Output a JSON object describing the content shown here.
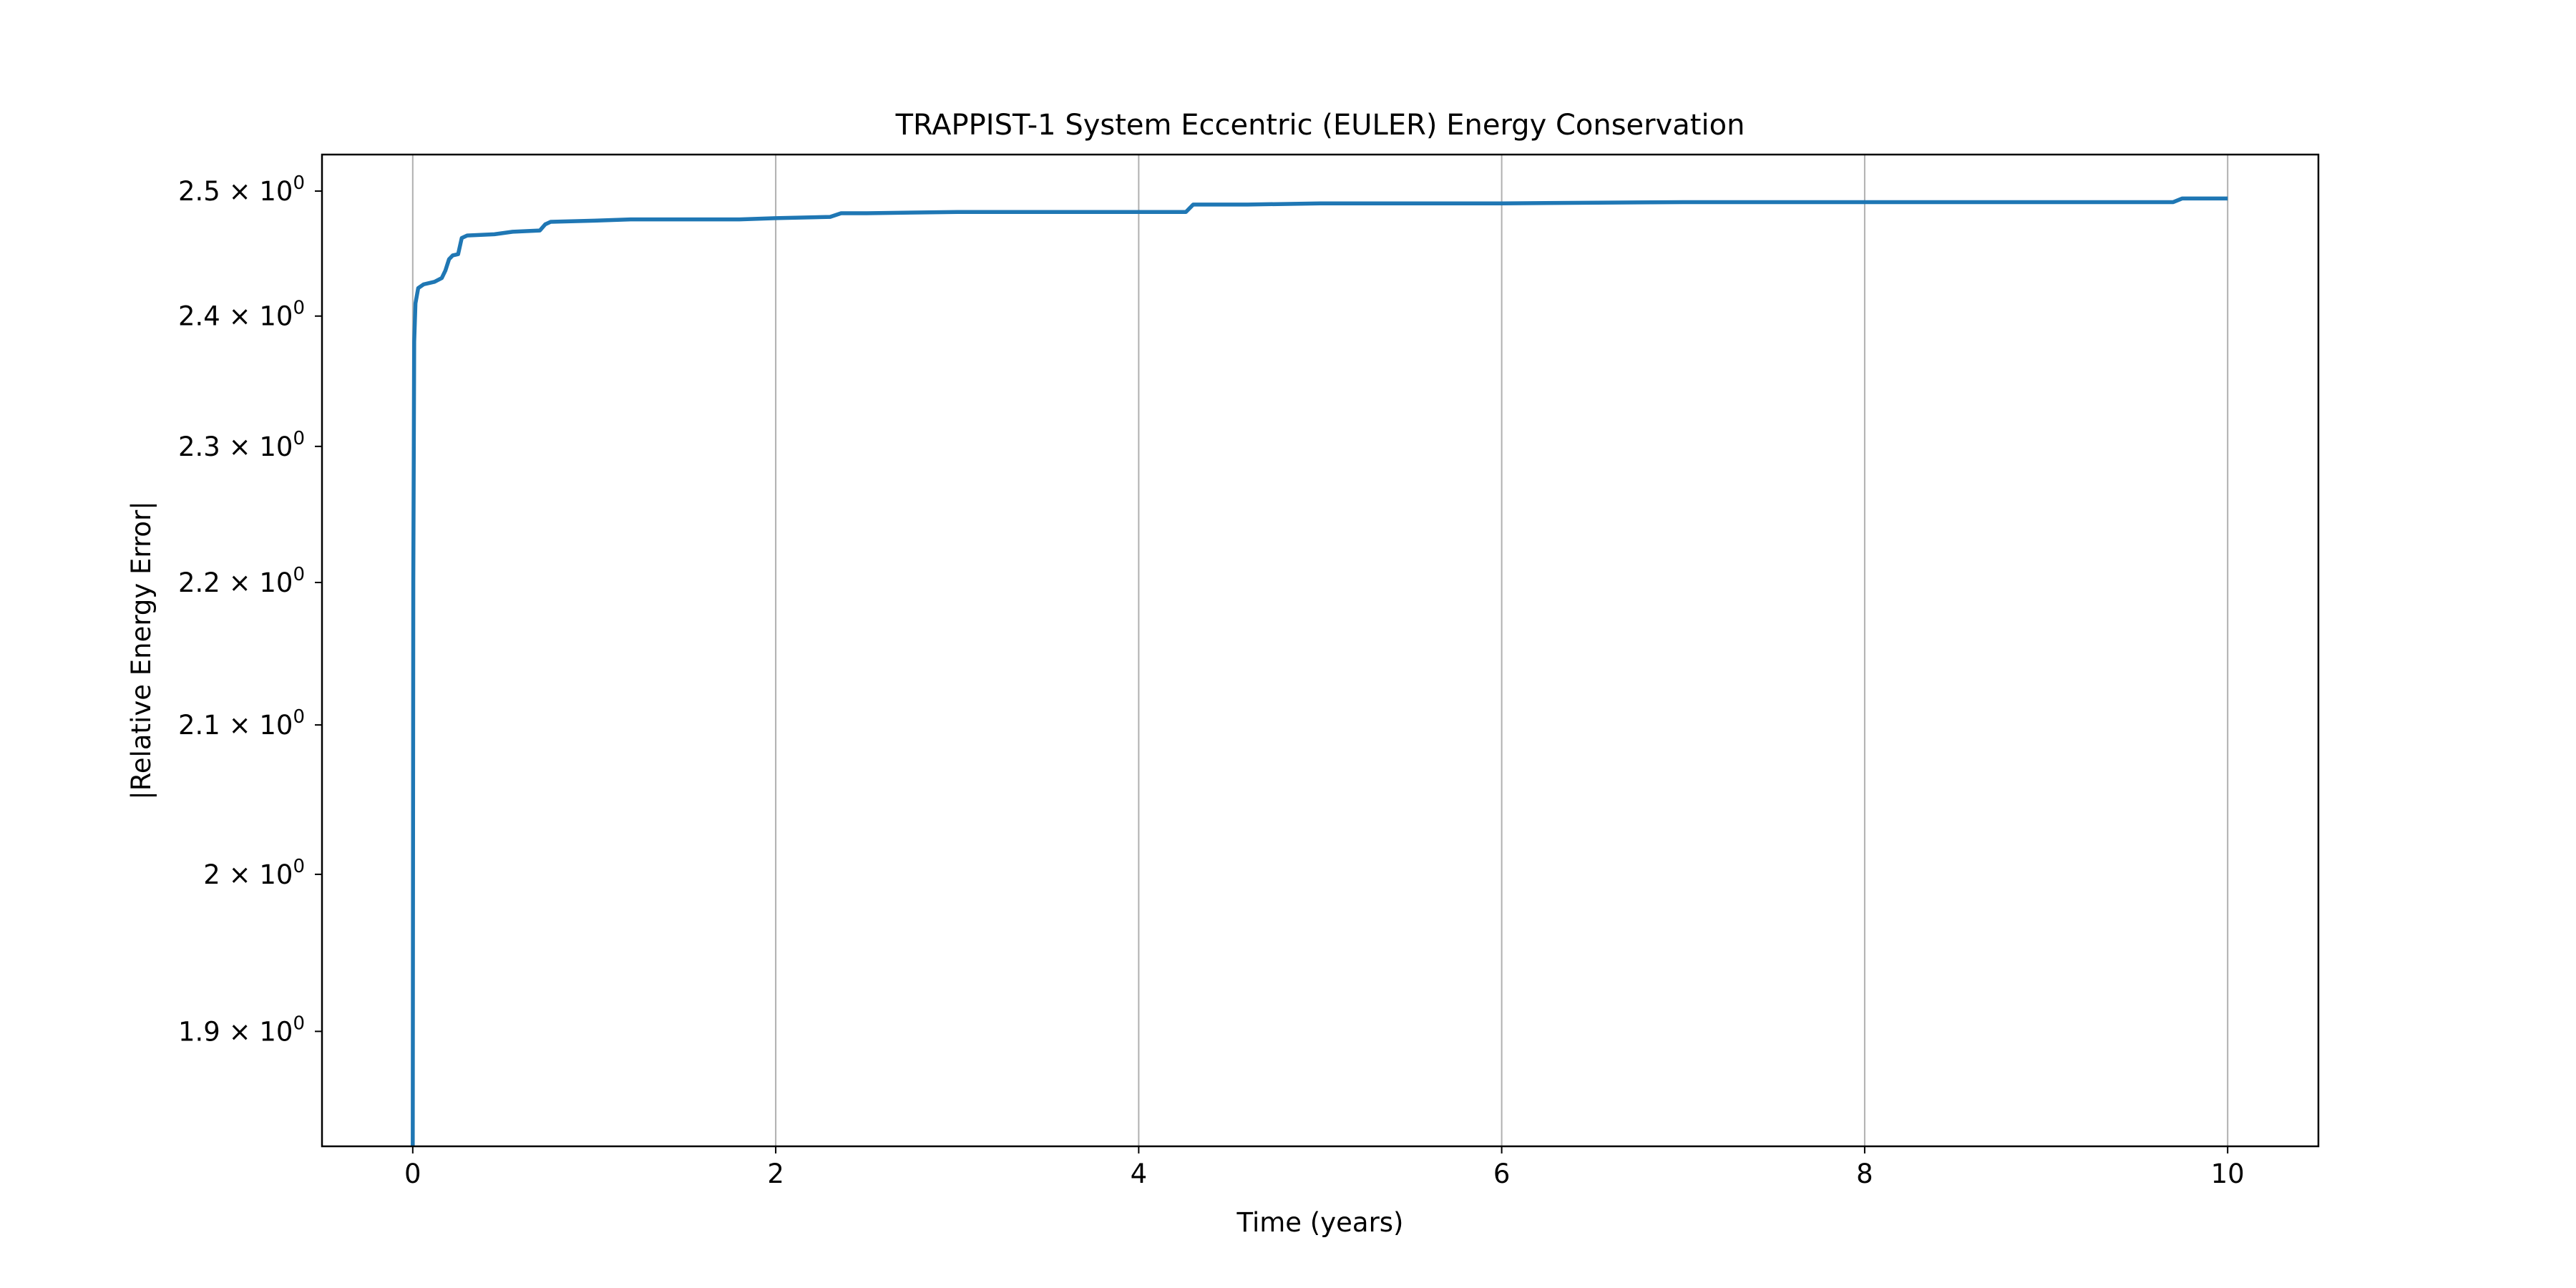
{
  "chart_data": {
    "type": "line",
    "title": "TRAPPIST-1 System Eccentric (EULER) Energy Conservation",
    "xlabel": "Time (years)",
    "ylabel": "|Relative Energy Error|",
    "yscale": "log",
    "xlim": [
      -0.5,
      10.5
    ],
    "ylim": [
      1.83,
      2.53
    ],
    "grid": "x-major",
    "line_color": "#1f77b4",
    "grid_color": "#b0b0b0",
    "x_ticks": [
      {
        "value": 0,
        "label": "0"
      },
      {
        "value": 2,
        "label": "2"
      },
      {
        "value": 4,
        "label": "4"
      },
      {
        "value": 6,
        "label": "6"
      },
      {
        "value": 8,
        "label": "8"
      },
      {
        "value": 10,
        "label": "10"
      }
    ],
    "y_ticks": [
      {
        "value": 1.9,
        "mantissa": "1.9",
        "exponent": "0"
      },
      {
        "value": 2.0,
        "mantissa": "2",
        "exponent": "0"
      },
      {
        "value": 2.1,
        "mantissa": "2.1",
        "exponent": "0"
      },
      {
        "value": 2.2,
        "mantissa": "2.2",
        "exponent": "0"
      },
      {
        "value": 2.3,
        "mantissa": "2.3",
        "exponent": "0"
      },
      {
        "value": 2.4,
        "mantissa": "2.4",
        "exponent": "0"
      },
      {
        "value": 2.5,
        "mantissa": "2.5",
        "exponent": "0"
      }
    ],
    "series": [
      {
        "points": [
          [
            0.0,
            1.83
          ],
          [
            0.003,
            2.2
          ],
          [
            0.008,
            2.38
          ],
          [
            0.015,
            2.41
          ],
          [
            0.03,
            2.422
          ],
          [
            0.06,
            2.425
          ],
          [
            0.12,
            2.427
          ],
          [
            0.16,
            2.43
          ],
          [
            0.18,
            2.436
          ],
          [
            0.2,
            2.445
          ],
          [
            0.22,
            2.448
          ],
          [
            0.25,
            2.449
          ],
          [
            0.27,
            2.462
          ],
          [
            0.3,
            2.464
          ],
          [
            0.45,
            2.465
          ],
          [
            0.55,
            2.467
          ],
          [
            0.7,
            2.468
          ],
          [
            0.73,
            2.473
          ],
          [
            0.76,
            2.475
          ],
          [
            1.0,
            2.476
          ],
          [
            1.2,
            2.477
          ],
          [
            1.8,
            2.477
          ],
          [
            2.0,
            2.478
          ],
          [
            2.3,
            2.479
          ],
          [
            2.36,
            2.482
          ],
          [
            2.5,
            2.482
          ],
          [
            3.0,
            2.483
          ],
          [
            4.0,
            2.483
          ],
          [
            4.26,
            2.483
          ],
          [
            4.3,
            2.489
          ],
          [
            4.6,
            2.489
          ],
          [
            5.0,
            2.49
          ],
          [
            6.0,
            2.49
          ],
          [
            7.0,
            2.491
          ],
          [
            8.0,
            2.491
          ],
          [
            9.0,
            2.491
          ],
          [
            9.7,
            2.491
          ],
          [
            9.75,
            2.494
          ],
          [
            10.0,
            2.494
          ]
        ]
      }
    ]
  }
}
